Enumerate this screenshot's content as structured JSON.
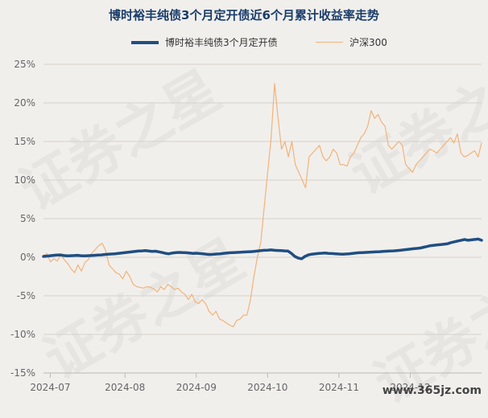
{
  "title": "博时裕丰纯债3个月定开债近6个月累计收益率走势",
  "watermark_text": "证券之星",
  "footer_watermark": "www.365jz.com",
  "chart_data": {
    "type": "line",
    "title": "博时裕丰纯债3个月定开债近6个月累计收益率走势",
    "xlabel": "",
    "ylabel": "",
    "ylim": [
      -15,
      25
    ],
    "yticks": [
      -15,
      -10,
      -5,
      0,
      5,
      10,
      15,
      20,
      25
    ],
    "ytick_labels": [
      "-15%",
      "-10%",
      "-5%",
      "0%",
      "5%",
      "10%",
      "15%",
      "20%",
      "25%"
    ],
    "xtick_labels": [
      "2024-07",
      "2024-08",
      "2024-09",
      "2024-10",
      "2024-11",
      "2024-12"
    ],
    "grid": true,
    "legend_position": "top",
    "series": [
      {
        "name": "博时裕丰纯债3个月定开债",
        "color": "#1f4e82",
        "width": 3.5,
        "values": [
          0.1,
          0.15,
          0.2,
          0.25,
          0.28,
          0.3,
          0.22,
          0.18,
          0.2,
          0.22,
          0.25,
          0.2,
          0.18,
          0.2,
          0.22,
          0.25,
          0.28,
          0.3,
          0.35,
          0.4,
          0.42,
          0.45,
          0.5,
          0.55,
          0.6,
          0.65,
          0.7,
          0.75,
          0.8,
          0.82,
          0.85,
          0.8,
          0.75,
          0.78,
          0.7,
          0.6,
          0.5,
          0.45,
          0.55,
          0.6,
          0.62,
          0.6,
          0.58,
          0.55,
          0.5,
          0.52,
          0.48,
          0.45,
          0.4,
          0.35,
          0.38,
          0.42,
          0.45,
          0.5,
          0.55,
          0.58,
          0.6,
          0.62,
          0.65,
          0.68,
          0.7,
          0.72,
          0.75,
          0.8,
          0.85,
          0.9,
          0.92,
          0.95,
          0.9,
          0.88,
          0.85,
          0.82,
          0.8,
          0.5,
          0.1,
          -0.1,
          -0.2,
          0.1,
          0.3,
          0.4,
          0.45,
          0.5,
          0.52,
          0.55,
          0.5,
          0.48,
          0.45,
          0.42,
          0.4,
          0.42,
          0.45,
          0.5,
          0.55,
          0.58,
          0.6,
          0.62,
          0.65,
          0.68,
          0.7,
          0.72,
          0.75,
          0.78,
          0.8,
          0.82,
          0.85,
          0.9,
          0.95,
          1.0,
          1.05,
          1.1,
          1.15,
          1.2,
          1.3,
          1.4,
          1.5,
          1.55,
          1.6,
          1.65,
          1.7,
          1.75,
          1.9,
          2.0,
          2.1,
          2.2,
          2.3,
          2.2,
          2.25,
          2.3,
          2.35,
          2.2
        ]
      },
      {
        "name": "沪深300",
        "color": "#f2b37a",
        "width": 1.2,
        "values": [
          0.2,
          0.5,
          -0.6,
          -0.2,
          -0.5,
          0.3,
          -0.3,
          -0.8,
          -1.5,
          -2.0,
          -1.0,
          -1.8,
          -0.7,
          -0.3,
          0.5,
          1.0,
          1.5,
          1.8,
          0.9,
          -1.0,
          -1.5,
          -2.0,
          -2.2,
          -2.8,
          -1.8,
          -2.5,
          -3.5,
          -3.8,
          -3.9,
          -4.0,
          -3.8,
          -3.9,
          -4.1,
          -4.5,
          -3.8,
          -4.2,
          -3.5,
          -3.8,
          -4.2,
          -4.0,
          -4.5,
          -4.8,
          -5.5,
          -4.8,
          -5.8,
          -6.0,
          -5.5,
          -6.0,
          -7.0,
          -7.5,
          -7.0,
          -8.0,
          -8.2,
          -8.5,
          -8.8,
          -9.0,
          -8.2,
          -8.0,
          -7.5,
          -7.5,
          -5.5,
          -2.5,
          0.0,
          2.0,
          6.5,
          11.0,
          15.5,
          22.5,
          18.0,
          14.0,
          15.0,
          13.0,
          15.0,
          12.0,
          11.0,
          10.0,
          9.0,
          13.0,
          13.5,
          14.0,
          14.5,
          13.0,
          12.5,
          13.0,
          14.0,
          13.5,
          12.0,
          12.0,
          11.8,
          13.0,
          13.5,
          14.5,
          15.5,
          16.0,
          17.0,
          19.0,
          18.0,
          18.5,
          17.5,
          17.0,
          14.5,
          14.0,
          14.5,
          15.0,
          14.5,
          12.0,
          11.5,
          11.0,
          12.0,
          12.5,
          13.0,
          13.5,
          14.0,
          13.8,
          13.5,
          14.0,
          14.5,
          15.0,
          15.5,
          14.8,
          16.0,
          13.5,
          13.0,
          13.2,
          13.5,
          13.8,
          13.0,
          14.8
        ]
      }
    ]
  }
}
